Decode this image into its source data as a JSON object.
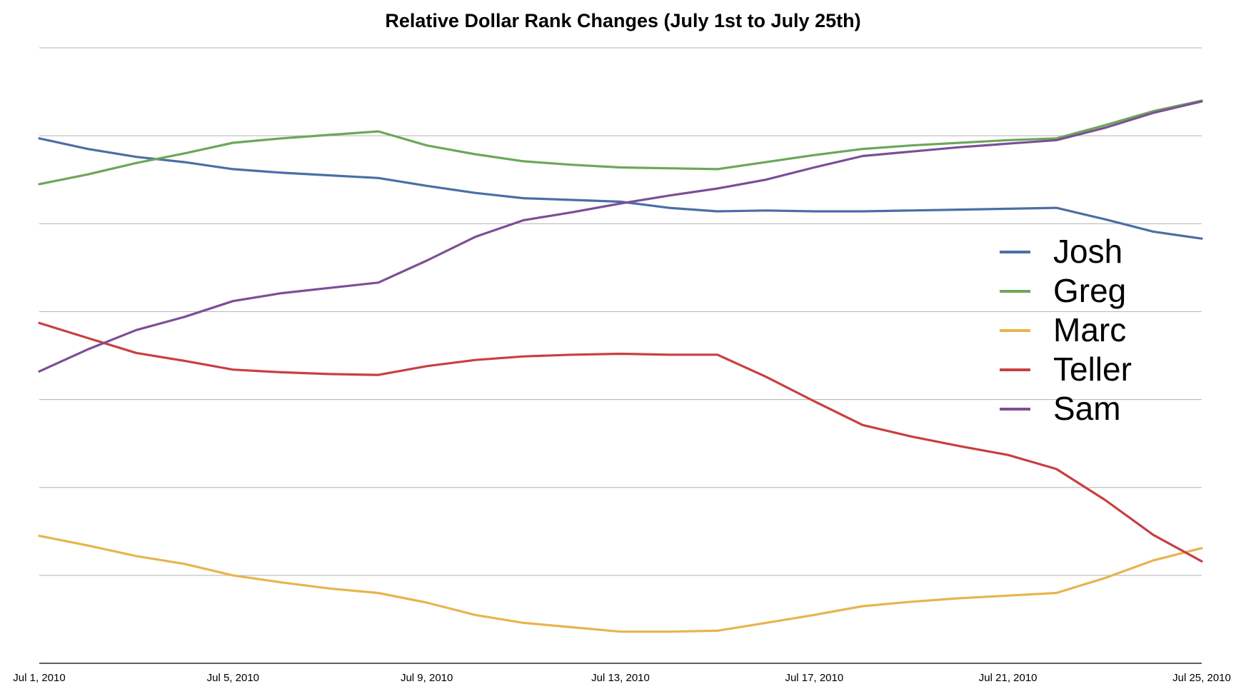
{
  "chart_data": {
    "type": "line",
    "title": "Relative Dollar Rank Changes (July 1st to July 25th)",
    "xlabel": "",
    "ylabel": "",
    "x": [
      "Jul 1",
      "Jul 2",
      "Jul 3",
      "Jul 4",
      "Jul 5",
      "Jul 6",
      "Jul 7",
      "Jul 8",
      "Jul 9",
      "Jul 10",
      "Jul 11",
      "Jul 12",
      "Jul 13",
      "Jul 14",
      "Jul 15",
      "Jul 16",
      "Jul 17",
      "Jul 18",
      "Jul 19",
      "Jul 20",
      "Jul 21",
      "Jul 22",
      "Jul 23",
      "Jul 24",
      "Jul 25"
    ],
    "x_tick_labels": [
      "Jul 1, 2010",
      "Jul 5, 2010",
      "Jul 9, 2010",
      "Jul 13, 2010",
      "Jul 17, 2010",
      "Jul 21, 2010",
      "Jul 25, 2010"
    ],
    "x_tick_indices": [
      0,
      4,
      8,
      12,
      16,
      20,
      24
    ],
    "ylim": [
      0,
      7
    ],
    "y_gridlines": [
      1,
      2,
      3,
      4,
      5,
      6,
      7
    ],
    "grid": true,
    "legend_position": "right",
    "series": [
      {
        "name": "Josh",
        "color": "#4a6fa5",
        "values": [
          5.97,
          5.85,
          5.76,
          5.7,
          5.62,
          5.58,
          5.55,
          5.52,
          5.43,
          5.35,
          5.29,
          5.27,
          5.25,
          5.18,
          5.14,
          5.15,
          5.14,
          5.14,
          5.15,
          5.16,
          5.17,
          5.18,
          5.05,
          4.91,
          4.83
        ]
      },
      {
        "name": "Greg",
        "color": "#6ca75a",
        "values": [
          5.45,
          5.56,
          5.69,
          5.8,
          5.92,
          5.97,
          6.01,
          6.05,
          5.89,
          5.79,
          5.71,
          5.67,
          5.64,
          5.63,
          5.62,
          5.7,
          5.78,
          5.85,
          5.89,
          5.92,
          5.95,
          5.97,
          6.12,
          6.28,
          6.4
        ]
      },
      {
        "name": "Marc",
        "color": "#e8b44e",
        "values": [
          1.45,
          1.34,
          1.22,
          1.13,
          1.0,
          0.92,
          0.85,
          0.8,
          0.69,
          0.55,
          0.46,
          0.41,
          0.36,
          0.36,
          0.37,
          0.46,
          0.55,
          0.65,
          0.7,
          0.74,
          0.77,
          0.8,
          0.97,
          1.17,
          1.31
        ]
      },
      {
        "name": "Teller",
        "color": "#c93f3f",
        "values": [
          3.87,
          3.7,
          3.53,
          3.44,
          3.34,
          3.31,
          3.29,
          3.28,
          3.38,
          3.45,
          3.49,
          3.51,
          3.52,
          3.51,
          3.51,
          3.26,
          2.98,
          2.71,
          2.58,
          2.47,
          2.37,
          2.21,
          1.86,
          1.46,
          1.16
        ]
      },
      {
        "name": "Sam",
        "color": "#7b4f95",
        "values": [
          3.32,
          3.57,
          3.79,
          3.94,
          4.12,
          4.21,
          4.27,
          4.33,
          4.58,
          4.85,
          5.04,
          5.13,
          5.23,
          5.32,
          5.4,
          5.5,
          5.64,
          5.77,
          5.82,
          5.87,
          5.91,
          5.95,
          6.09,
          6.26,
          6.39
        ]
      }
    ]
  }
}
